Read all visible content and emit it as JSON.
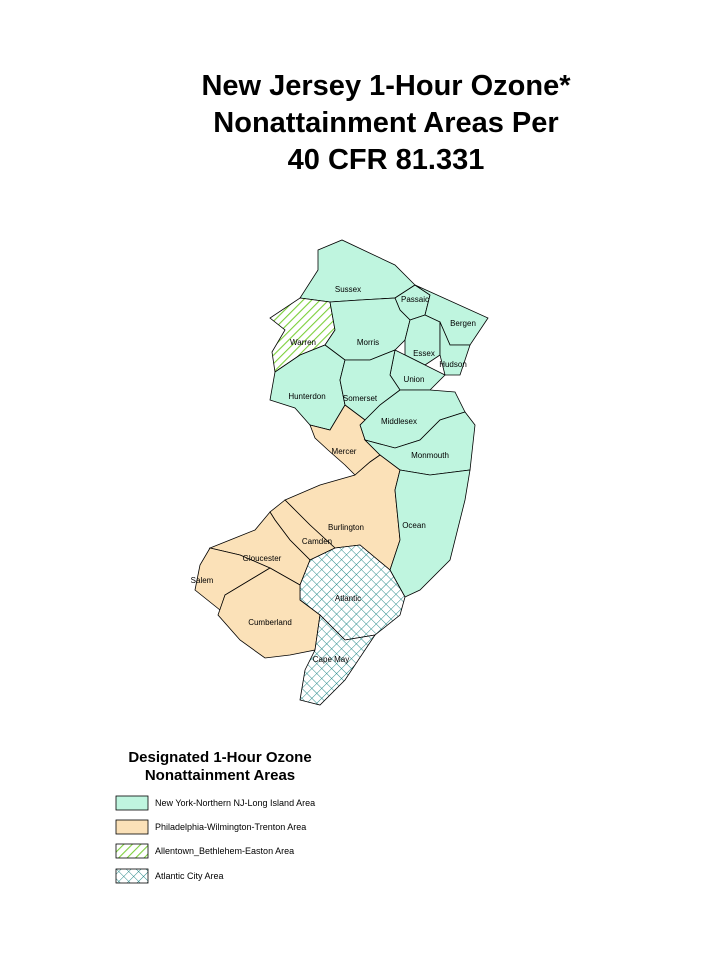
{
  "title": [
    "New Jersey 1-Hour Ozone*",
    "Nonattainment Areas Per",
    "40 CFR 81.331"
  ],
  "counties": [
    "Sussex",
    "Passaic",
    "Bergen",
    "Warren",
    "Morris",
    "Essex",
    "Hudson",
    "Union",
    "Hunterdon",
    "Somerset",
    "Middlesex",
    "Mercer",
    "Monmouth",
    "Burlington",
    "Ocean",
    "Camden",
    "Gloucester",
    "Salem",
    "Atlantic",
    "Cumberland",
    "Cape May"
  ],
  "legend": {
    "title": [
      "Designated 1-Hour Ozone",
      "Nonattainment Areas"
    ],
    "items": [
      "New York-Northern NJ-Long Island Area",
      "Philadelphia-Wilmington-Trenton Area",
      "Allentown_Bethlehem-Easton Area",
      "Atlantic City Area"
    ]
  }
}
